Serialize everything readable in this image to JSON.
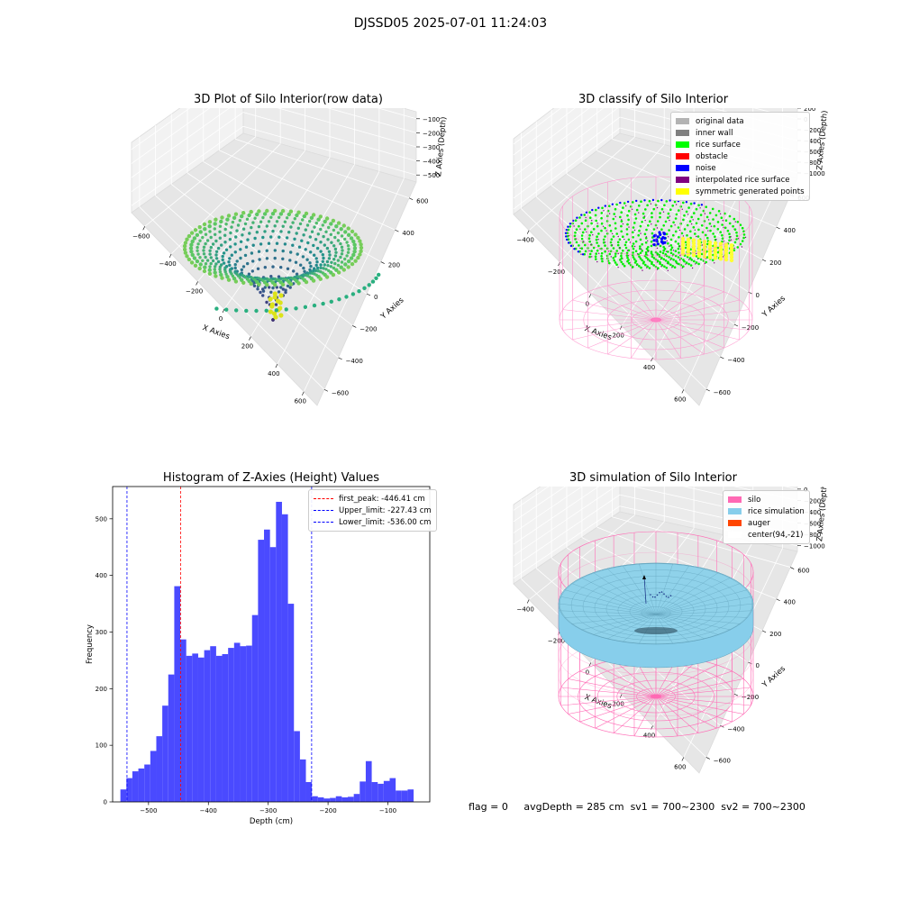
{
  "suptitle": "DJSSD05 2025-07-01 11:24:03",
  "colors": {
    "viridis": [
      "#440154",
      "#3b528b",
      "#21918c",
      "#5ec962",
      "#fde725"
    ],
    "histogram_bar": "#4a4aff",
    "first_peak_line": "#ff0000",
    "limit_lines": "#0000ff"
  },
  "chart_data": [
    {
      "type": "scatter",
      "title": "3D Plot of Silo Interior(row data)",
      "xlabel": "X Axies",
      "ylabel": "Y Axies",
      "zlabel": "Z Axies (Depth)",
      "x_ticks": [
        "−600",
        "−400",
        "−200",
        "0",
        "200",
        "400",
        "600"
      ],
      "y_ticks": [
        "−600",
        "−400",
        "−200",
        "0",
        "200",
        "400",
        "600"
      ],
      "z_ticks": [
        "−500",
        "−400",
        "−300",
        "−200",
        "−100"
      ],
      "xlim": [
        -650,
        650
      ],
      "ylim": [
        -650,
        650
      ],
      "zlim": [
        -600,
        -50
      ],
      "colormap": "viridis"
    },
    {
      "type": "scatter",
      "title": "3D classify of Silo Interior",
      "xlabel": "X Axies",
      "ylabel": "Y Axies",
      "zlabel": "Z Axies (Depth)",
      "x_ticks": [
        "−400",
        "−200",
        "0",
        "200",
        "400",
        "600"
      ],
      "y_ticks": [
        "−600",
        "−400",
        "−200",
        "0",
        "200",
        "400",
        "600"
      ],
      "z_ticks": [
        "−1000",
        "−800",
        "−600",
        "−400",
        "−200",
        "0",
        "200"
      ],
      "legend": [
        {
          "label": "original data",
          "color": "#b3b3b3"
        },
        {
          "label": "inner wall",
          "color": "#808080"
        },
        {
          "label": "rice surface",
          "color": "#00ff00"
        },
        {
          "label": "obstacle",
          "color": "#ff0000"
        },
        {
          "label": "noise",
          "color": "#0000ff"
        },
        {
          "label": "interpolated rice surface",
          "color": "#800080"
        },
        {
          "label": "symmetric generated points",
          "color": "#ffff00"
        }
      ]
    },
    {
      "type": "bar",
      "title": "Histogram of Z-Axies (Height) Values",
      "xlabel": "Depth (cm)",
      "ylabel": "Frequency",
      "bin_start": -547,
      "bin_width": 10,
      "values": [
        22,
        42,
        54,
        59,
        66,
        90,
        116,
        170,
        225,
        381,
        287,
        258,
        262,
        255,
        268,
        275,
        258,
        261,
        272,
        281,
        275,
        276,
        330,
        463,
        481,
        450,
        530,
        508,
        350,
        125,
        75,
        35,
        10,
        8,
        6,
        7,
        10,
        8,
        9,
        14,
        36,
        72,
        35,
        32,
        37,
        42,
        20,
        20,
        22
      ],
      "xlim": [
        -560,
        -30
      ],
      "ylim": [
        0,
        557
      ],
      "x_ticks": [
        -500,
        -400,
        -300,
        -200,
        -100
      ],
      "y_ticks": [
        0,
        100,
        200,
        300,
        400,
        500
      ],
      "vlines": [
        {
          "x": -446.41,
          "color": "#ff0000",
          "label": "first_peak: -446.41 cm"
        },
        {
          "x": -227.43,
          "color": "#0000ff",
          "label": "Upper_limit: -227.43 cm"
        },
        {
          "x": -536.0,
          "color": "#0000ff",
          "label": "Lower_limit: -536.00 cm"
        }
      ],
      "legend_position": "top-right"
    },
    {
      "type": "scatter",
      "title": "3D simulation of Silo Interior",
      "xlabel": "X Axies",
      "ylabel": "Y Axies",
      "zlabel": "Z Axies (Depth)",
      "x_ticks": [
        "−400",
        "−200",
        "0",
        "200",
        "400",
        "600"
      ],
      "y_ticks": [
        "−600",
        "−400",
        "−200",
        "0",
        "200",
        "400",
        "600"
      ],
      "z_ticks": [
        "−1000",
        "−800",
        "−600",
        "−400",
        "−200",
        "0",
        "200"
      ],
      "legend": [
        {
          "label": "silo",
          "color": "#ff69b4"
        },
        {
          "label": "rice simulation",
          "color": "#87ceeb"
        },
        {
          "label": "auger",
          "color": "#ff4500"
        },
        {
          "label": "center(94,-21)",
          "color": "#ffffff"
        }
      ]
    }
  ],
  "footer": {
    "flag": "flag = 0",
    "avg_depth": "avgDepth = 285 cm",
    "sv1": "sv1 = 700~2300",
    "sv2": "sv2 = 700~2300"
  }
}
